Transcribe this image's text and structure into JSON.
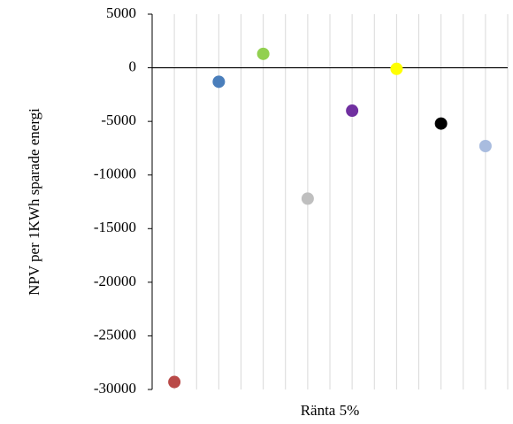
{
  "chart_data": {
    "type": "scatter",
    "x_label": "Ränta 5%",
    "y_label": "NPV per 1KWh sparade energi",
    "x": [
      1,
      3,
      5,
      7,
      9,
      11,
      13,
      15
    ],
    "values": [
      -29300,
      -1300,
      1300,
      -12200,
      -4000,
      -100,
      -5200,
      -7300
    ],
    "colors": [
      "#b94a48",
      "#4a7ebb",
      "#92d050",
      "#bfbfbf",
      "#7030a0",
      "#ffff00",
      "#000000",
      "#a9bcdf"
    ],
    "xlim": [
      0,
      16
    ],
    "xticks": [
      0,
      1,
      2,
      3,
      4,
      5,
      6,
      7,
      8,
      9,
      10,
      11,
      12,
      13,
      14,
      15,
      16
    ],
    "ylim": [
      -30000,
      5000
    ],
    "yticks": [
      -30000,
      -25000,
      -20000,
      -15000,
      -10000,
      -5000,
      0,
      5000
    ],
    "grid": true
  }
}
